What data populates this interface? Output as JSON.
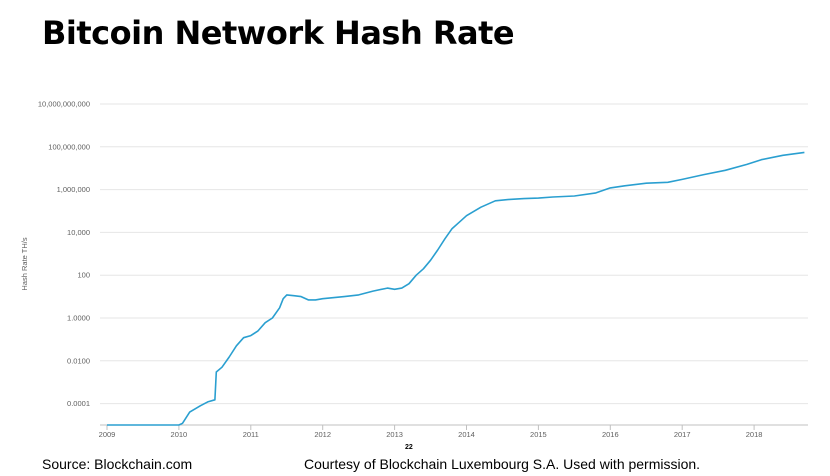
{
  "slide": {
    "title": "Bitcoin Network Hash Rate",
    "source": "Source: Blockchain.com",
    "credit": "Courtesy of Blockchain Luxembourg S.A.  Used with permission.",
    "page_number": "22"
  },
  "chart_data": {
    "type": "line",
    "title": "",
    "xlabel": "",
    "ylabel": "Hash Rate TH/s",
    "y_scale": "log",
    "ylim": [
      1e-05,
      10000000000
    ],
    "xlim": [
      2009.0,
      2018.75
    ],
    "grid": "horizontal",
    "color": "#2a9fd0",
    "y_ticks": [
      {
        "value": 0.0001,
        "label": "0.0001"
      },
      {
        "value": 0.01,
        "label": "0.0100"
      },
      {
        "value": 1,
        "label": "1.0000"
      },
      {
        "value": 100,
        "label": "100"
      },
      {
        "value": 10000,
        "label": "10,000"
      },
      {
        "value": 1000000,
        "label": "1,000,000"
      },
      {
        "value": 100000000,
        "label": "100,000,000"
      },
      {
        "value": 10000000000,
        "label": "10,000,000,000"
      }
    ],
    "x_ticks": [
      {
        "value": 2009,
        "label": "2009"
      },
      {
        "value": 2010,
        "label": "2010"
      },
      {
        "value": 2011,
        "label": "2011"
      },
      {
        "value": 2012,
        "label": "2012"
      },
      {
        "value": 2013,
        "label": "2013"
      },
      {
        "value": 2014,
        "label": "2014"
      },
      {
        "value": 2015,
        "label": "2015"
      },
      {
        "value": 2016,
        "label": "2016"
      },
      {
        "value": 2017,
        "label": "2017"
      },
      {
        "value": 2018,
        "label": "2018"
      }
    ],
    "series": [
      {
        "x": [
          2009.0,
          2009.5,
          2010.0,
          2010.05,
          2010.15,
          2010.3,
          2010.4,
          2010.5,
          2010.52,
          2010.6,
          2010.7,
          2010.8,
          2010.9,
          2011.0,
          2011.1,
          2011.2,
          2011.3,
          2011.4,
          2011.45,
          2011.5,
          2011.6,
          2011.7,
          2011.8,
          2011.9,
          2012.0,
          2012.3,
          2012.5,
          2012.7,
          2012.9,
          2013.0,
          2013.1,
          2013.2,
          2013.3,
          2013.4,
          2013.5,
          2013.6,
          2013.7,
          2013.8,
          2013.9,
          2014.0,
          2014.2,
          2014.4,
          2014.6,
          2014.8,
          2015.0,
          2015.2,
          2015.5,
          2015.8,
          2016.0,
          2016.2,
          2016.5,
          2016.8,
          2017.0,
          2017.3,
          2017.6,
          2017.9,
          2018.1,
          2018.4,
          2018.7
        ],
        "y": [
          1e-05,
          1e-05,
          1e-05,
          1.2e-05,
          4e-05,
          8e-05,
          0.00012,
          0.00015,
          0.003,
          0.005,
          0.015,
          0.05,
          0.12,
          0.15,
          0.25,
          0.6,
          1.0,
          3.0,
          8.0,
          12.0,
          11.0,
          10.0,
          7.0,
          7.0,
          8.0,
          10.0,
          12.0,
          18.0,
          25.0,
          22.0,
          25.0,
          40.0,
          100.0,
          200.0,
          500.0,
          1500.0,
          5000.0,
          15000.0,
          30000.0,
          60000.0,
          150000.0,
          300000.0,
          350000.0,
          380000.0,
          400000.0,
          450000.0,
          500000.0,
          700000.0,
          1200000.0,
          1500000.0,
          2000000.0,
          2200000.0,
          3000000.0,
          5000000.0,
          8000000.0,
          15000000.0,
          25000000.0,
          40000000.0,
          55000000.0
        ]
      }
    ]
  }
}
